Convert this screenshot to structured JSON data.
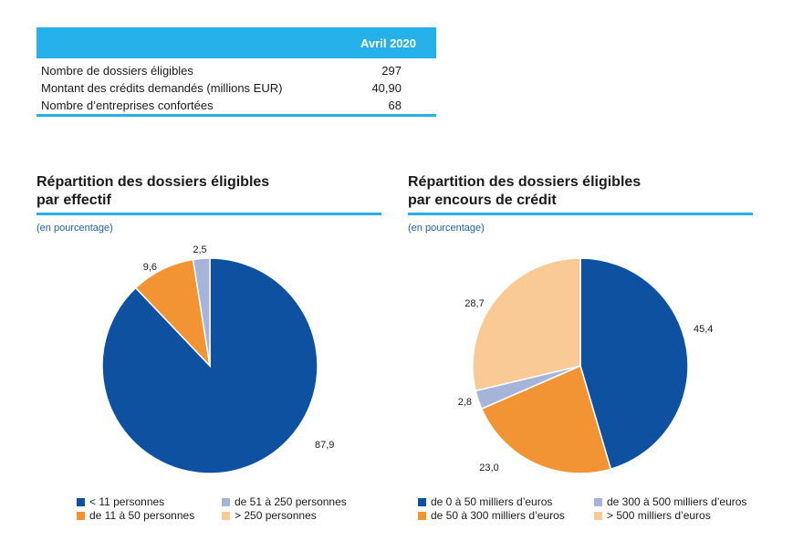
{
  "table": {
    "header": "Avril 2020",
    "rows": [
      {
        "label": "Nombre de dossiers éligibles",
        "value": "297"
      },
      {
        "label": "Montant des crédits demandés (millions EUR)",
        "value": "40,90"
      },
      {
        "label": "Nombre d’entreprises confortées",
        "value": "68"
      }
    ]
  },
  "colors": {
    "accent": "#25b0ea",
    "dark_blue": "#0f51a1",
    "orange": "#f29434",
    "light_lavender": "#a7b4d9",
    "light_orange": "#f9c996"
  },
  "chart_data": [
    {
      "type": "pie",
      "title": "Répartition des dossiers éligibles par effectif",
      "title_lines": [
        "Répartition des dossiers éligibles",
        "par effectif"
      ],
      "subtitle": "(en pourcentage)",
      "categories": [
        "< 11 personnes",
        "de 11 à 50 personnes",
        "de 51 à 250 personnes",
        "> 250 personnes"
      ],
      "values": [
        87.9,
        9.6,
        2.5,
        0.0
      ],
      "value_labels": [
        "87,9",
        "9,6",
        "2,5",
        ""
      ],
      "colors": [
        "#0f51a1",
        "#f29434",
        "#a7b4d9",
        "#f9c996"
      ],
      "start": "12 o'clock",
      "direction": "clockwise",
      "legend_position": "bottom"
    },
    {
      "type": "pie",
      "title": "Répartition des dossiers éligibles par encours de crédit",
      "title_lines": [
        "Répartition des dossiers éligibles",
        "par encours de crédit"
      ],
      "subtitle": "(en pourcentage)",
      "categories": [
        "de 0 à 50 milliers d’euros",
        "de 50 à 300 milliers d’euros",
        "de 300 à 500 milliers d’euros",
        "> 500 milliers d’euros"
      ],
      "values": [
        45.4,
        23.0,
        2.8,
        28.7
      ],
      "value_labels": [
        "45,4",
        "23,0",
        "2,8",
        "28,7"
      ],
      "colors": [
        "#0f51a1",
        "#f29434",
        "#a7b4d9",
        "#f9c996"
      ],
      "start": "12 o'clock",
      "direction": "clockwise",
      "legend_position": "bottom"
    }
  ]
}
